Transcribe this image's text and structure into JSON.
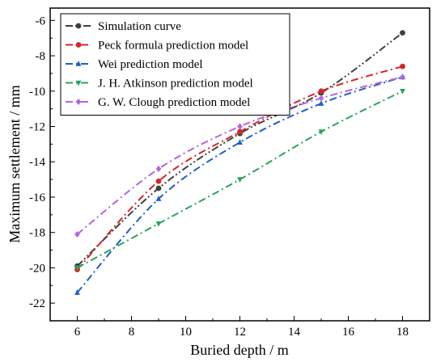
{
  "chart_data": {
    "type": "line",
    "xlabel": "Buried depth / m",
    "ylabel": "Maximum settlement / mm",
    "xlim": [
      5,
      19
    ],
    "ylim": [
      -23,
      -5.3
    ],
    "xticks": [
      6,
      8,
      10,
      12,
      14,
      16,
      18
    ],
    "yticks": [
      -22,
      -20,
      -18,
      -16,
      -14,
      -12,
      -10,
      -8,
      -6
    ],
    "grid": false,
    "legend_position": "top-left",
    "x": [
      6,
      9,
      12,
      15,
      18
    ],
    "series": [
      {
        "name": "Simulation curve",
        "color": "#3f3f3f",
        "marker": "circle",
        "dash": "dash-dot-dot",
        "values": [
          -19.9,
          -15.5,
          -12.4,
          -10.1,
          -6.7
        ]
      },
      {
        "name": "Peck formula prediction model",
        "color": "#d62728",
        "marker": "circle",
        "dash": "dash-dot",
        "values": [
          -20.1,
          -15.1,
          -12.3,
          -10.0,
          -8.6
        ]
      },
      {
        "name": "Wei prediction model",
        "color": "#1f5fc8",
        "marker": "triangle-up",
        "dash": "dash-dot",
        "values": [
          -21.4,
          -16.1,
          -12.9,
          -10.7,
          -9.2
        ]
      },
      {
        "name": "J. H. Atkinson prediction model",
        "color": "#2ca25f",
        "marker": "triangle-down",
        "dash": "dash-dot",
        "values": [
          -20.0,
          -17.5,
          -15.0,
          -12.3,
          -10.0
        ]
      },
      {
        "name": "G. W. Clough prediction model",
        "color": "#b266e0",
        "marker": "diamond",
        "dash": "dash-dot",
        "values": [
          -18.1,
          -14.4,
          -12.0,
          -10.4,
          -9.2
        ]
      }
    ]
  }
}
